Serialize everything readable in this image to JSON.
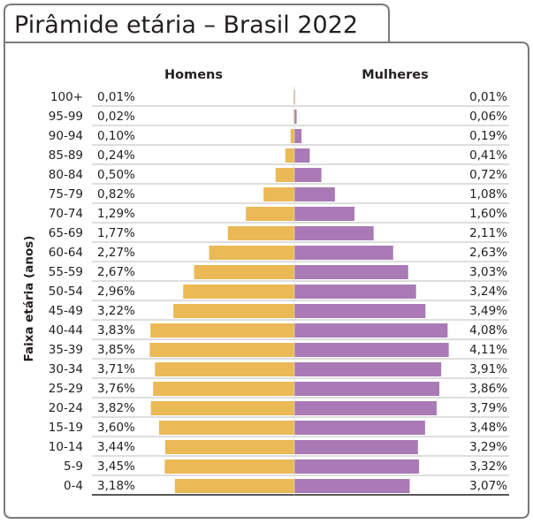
{
  "title": "Pirâmide etária – Brasil 2022",
  "chart_data": {
    "type": "bar",
    "orientation": "horizontal-population-pyramid",
    "ylabel": "Faixa etária (anos)",
    "unit": "%",
    "categories": [
      "100+",
      "95-99",
      "90-94",
      "85-89",
      "80-84",
      "75-79",
      "70-74",
      "65-69",
      "60-64",
      "55-59",
      "50-54",
      "45-49",
      "40-44",
      "35-39",
      "30-34",
      "25-29",
      "20-24",
      "15-19",
      "10-14",
      "5-9",
      "0-4"
    ],
    "series": [
      {
        "name": "Homens",
        "color": "#ebb955",
        "values": [
          0.01,
          0.02,
          0.1,
          0.24,
          0.5,
          0.82,
          1.29,
          1.77,
          2.27,
          2.67,
          2.96,
          3.22,
          3.83,
          3.85,
          3.71,
          3.76,
          3.82,
          3.6,
          3.44,
          3.45,
          3.18
        ],
        "labels": [
          "0,01%",
          "0,02%",
          "0,10%",
          "0,24%",
          "0,50%",
          "0,82%",
          "1,29%",
          "1,77%",
          "2,27%",
          "2,67%",
          "2,96%",
          "3,22%",
          "3,83%",
          "3,85%",
          "3,71%",
          "3,76%",
          "3,82%",
          "3,60%",
          "3,44%",
          "3,45%",
          "3,18%"
        ]
      },
      {
        "name": "Mulheres",
        "color": "#a97ab5",
        "values": [
          0.01,
          0.06,
          0.19,
          0.41,
          0.72,
          1.08,
          1.6,
          2.11,
          2.63,
          3.03,
          3.24,
          3.49,
          4.08,
          4.11,
          3.91,
          3.86,
          3.79,
          3.48,
          3.29,
          3.32,
          3.07
        ],
        "labels": [
          "0,01%",
          "0,06%",
          "0,19%",
          "0,41%",
          "0,72%",
          "1,08%",
          "1,60%",
          "2,11%",
          "2,63%",
          "3,03%",
          "3,24%",
          "3,49%",
          "4,08%",
          "4,11%",
          "3,91%",
          "3,86%",
          "3,79%",
          "3,48%",
          "3,29%",
          "3,32%",
          "3,07%"
        ]
      }
    ],
    "grid": false,
    "legend": "top"
  }
}
